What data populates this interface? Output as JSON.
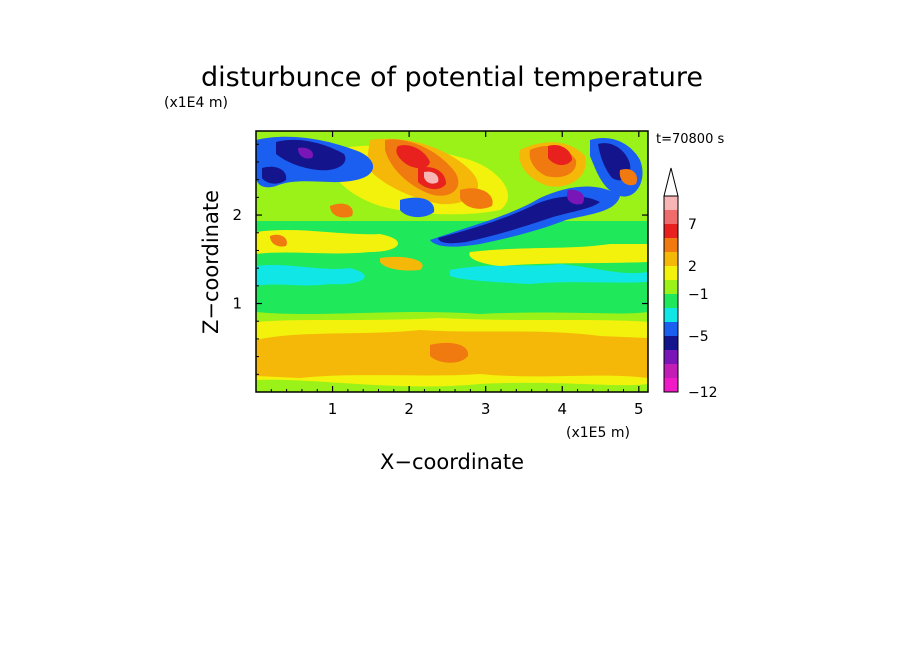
{
  "chart_data": {
    "type": "heatmap",
    "title": "disturbunce of potential temperature",
    "xlabel": "X−coordinate",
    "ylabel": "Z−coordinate",
    "x_unit": "(x1E5 m)",
    "y_unit": "(x1E4 m)",
    "time_label": "t=70800 s",
    "xlim": [
      0,
      5.12
    ],
    "ylim": [
      0,
      2.95
    ],
    "x_ticks": [
      "1",
      "2",
      "3",
      "4",
      "5"
    ],
    "x_tick_values": [
      1,
      2,
      3,
      4,
      5
    ],
    "y_ticks": [
      "1",
      "2"
    ],
    "y_tick_values": [
      1,
      2
    ],
    "colorbar": {
      "labels": [
        "7",
        "2",
        "−1",
        "−5",
        "−12"
      ],
      "label_values": [
        7,
        2,
        -1,
        -5,
        -12
      ],
      "extend": "max",
      "colors_top_to_bottom": [
        "#f7b5b5",
        "#f06b6b",
        "#e8201e",
        "#f07a10",
        "#f5b808",
        "#f2f20c",
        "#9af218",
        "#1fe85a",
        "#11e6e6",
        "#1a5ff0",
        "#14148c",
        "#7a15b8",
        "#c21db5",
        "#f01bc7"
      ]
    },
    "field_bands": [
      {
        "z_range": [
          0,
          0.1
        ],
        "value": 1.5
      },
      {
        "z_range": [
          0.1,
          0.6
        ],
        "value": 3.5
      },
      {
        "z_range": [
          0.6,
          0.85
        ],
        "value": 1.5
      },
      {
        "z_range": [
          0.85,
          1.3
        ],
        "value": 0.2
      },
      {
        "z_range": [
          1.3,
          1.55
        ],
        "value": -0.8
      },
      {
        "z_range": [
          1.55,
          2.0
        ],
        "value": 1.0
      },
      {
        "z_range": [
          2.0,
          2.95
        ],
        "value": "mixed (-6 to 9)"
      }
    ]
  }
}
